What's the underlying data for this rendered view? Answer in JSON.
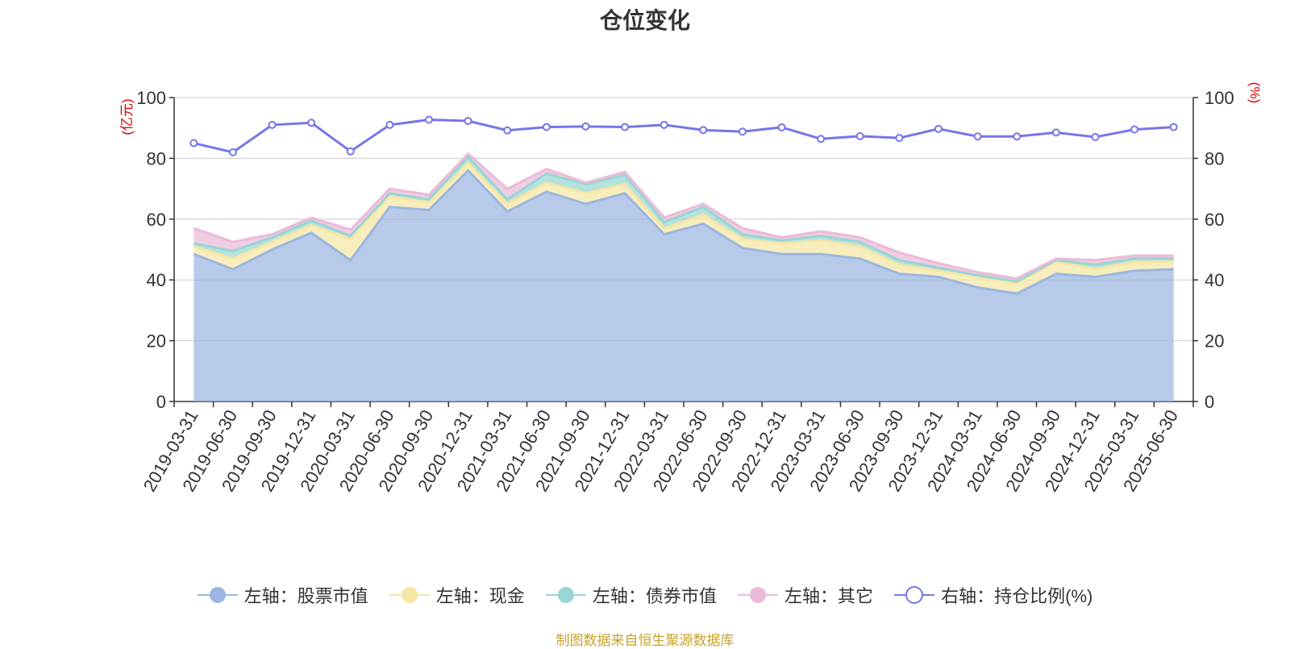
{
  "chart_data": {
    "type": "area",
    "title": "仓位变化",
    "left_unit": "(亿元)",
    "right_unit": "(%)",
    "left_ylim": [
      0,
      100
    ],
    "right_ylim": [
      0,
      100
    ],
    "y_ticks": [
      0,
      20,
      40,
      60,
      80,
      100
    ],
    "grid": true,
    "legend_position": "bottom",
    "categories": [
      "2019-03-31",
      "2019-06-30",
      "2019-09-30",
      "2019-12-31",
      "2020-03-31",
      "2020-06-30",
      "2020-09-30",
      "2020-12-31",
      "2021-03-31",
      "2021-06-30",
      "2021-09-30",
      "2021-12-31",
      "2022-03-31",
      "2022-06-30",
      "2022-09-30",
      "2022-12-31",
      "2023-03-31",
      "2023-06-30",
      "2023-09-30",
      "2023-12-31",
      "2024-03-31",
      "2024-06-30",
      "2024-09-30",
      "2024-12-31",
      "2025-03-31",
      "2025-06-30"
    ],
    "stacked_series": [
      {
        "name": "左轴：股票市值",
        "axis": "left",
        "color": "#9bb6e0",
        "values": [
          48.5,
          43.5,
          50.0,
          55.5,
          46.5,
          64.0,
          63.0,
          76.0,
          62.5,
          69.0,
          65.0,
          68.5,
          55.0,
          58.5,
          50.5,
          48.5,
          48.5,
          47.0,
          42.0,
          41.0,
          37.5,
          35.5,
          42.0,
          41.0,
          43.0,
          43.5
        ]
      },
      {
        "name": "左轴：现金",
        "axis": "left",
        "color": "#f5e6a3",
        "values": [
          2.5,
          3.5,
          2.5,
          2.5,
          7.0,
          3.5,
          2.5,
          2.5,
          2.5,
          3.0,
          3.5,
          3.0,
          2.0,
          3.0,
          3.0,
          3.5,
          4.5,
          4.0,
          3.0,
          2.0,
          3.5,
          3.5,
          4.0,
          2.5,
          3.0,
          2.5
        ]
      },
      {
        "name": "左轴：债券市值",
        "axis": "left",
        "color": "#98d5d3",
        "values": [
          1.0,
          2.5,
          1.5,
          1.5,
          1.0,
          1.0,
          1.0,
          2.0,
          1.5,
          3.0,
          3.0,
          3.0,
          2.0,
          2.5,
          1.5,
          1.0,
          1.5,
          1.5,
          1.5,
          1.0,
          0.5,
          0.5,
          0.5,
          1.5,
          1.0,
          1.0
        ]
      },
      {
        "name": "左轴：其它",
        "axis": "left",
        "color": "#ebbad9",
        "values": [
          5.0,
          3.0,
          1.0,
          1.0,
          2.0,
          1.5,
          1.5,
          1.0,
          3.5,
          1.5,
          0.5,
          1.0,
          1.5,
          1.0,
          2.0,
          1.0,
          1.5,
          1.5,
          2.5,
          1.5,
          1.0,
          1.0,
          0.5,
          1.5,
          1.0,
          1.0
        ]
      }
    ],
    "line_series": {
      "name": "右轴：持仓比例(%)",
      "axis": "right",
      "color": "#7576e8",
      "values": [
        85.0,
        82.0,
        91.0,
        91.7,
        82.3,
        91.0,
        92.7,
        92.3,
        89.2,
        90.3,
        90.5,
        90.3,
        91.0,
        89.3,
        88.8,
        90.2,
        86.4,
        87.3,
        86.7,
        89.7,
        87.2,
        87.2,
        88.5,
        87.0,
        89.5,
        90.3
      ]
    },
    "source": "制图数据来自恒生聚源数据库"
  }
}
